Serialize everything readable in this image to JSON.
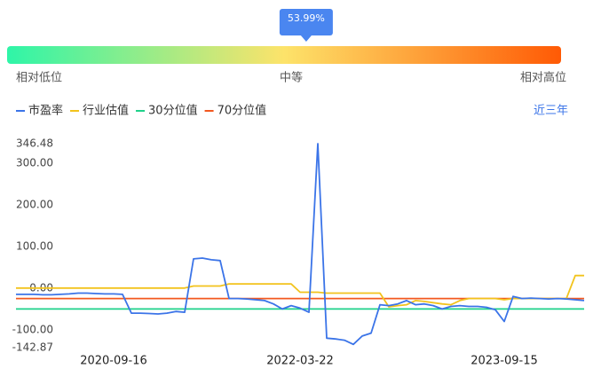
{
  "gauge": {
    "value": 53.99,
    "value_label": "53.99%",
    "labels": [
      "相对低位",
      "中等",
      "相对高位"
    ]
  },
  "range_button": "近三年",
  "chart_data": {
    "type": "line",
    "categories": [
      null,
      null,
      null,
      null,
      null,
      null,
      null,
      null,
      null,
      null,
      null,
      "2020-09-16",
      null,
      null,
      null,
      null,
      null,
      null,
      null,
      null,
      null,
      null,
      null,
      null,
      null,
      null,
      null,
      null,
      null,
      null,
      null,
      null,
      "2022-03-22",
      null,
      null,
      null,
      null,
      null,
      null,
      null,
      null,
      null,
      null,
      null,
      null,
      null,
      null,
      null,
      null,
      null,
      null,
      null,
      null,
      null,
      null,
      "2023-09-15",
      null,
      null,
      null,
      null,
      null,
      null,
      null,
      null,
      null
    ],
    "series": [
      {
        "name": "市盈率",
        "color": "#3b74e8",
        "values": [
          -15,
          -15,
          -15,
          -16,
          -16,
          -15,
          -14,
          -12,
          -12,
          -13,
          -14,
          -14,
          -15,
          -60,
          -60,
          -61,
          -62,
          -60,
          -56,
          -58,
          70,
          72,
          68,
          66,
          -25,
          -25,
          -26,
          -28,
          -30,
          -38,
          -50,
          -42,
          -48,
          -58,
          346.48,
          -120,
          -122,
          -125,
          -135,
          -115,
          -108,
          -40,
          -42,
          -38,
          -30,
          -40,
          -38,
          -42,
          -50,
          -44,
          -42,
          -44,
          -44,
          -46,
          -52,
          -80,
          -20,
          -25,
          -24,
          -25,
          -26,
          -25,
          -26,
          -28,
          -30
        ]
      },
      {
        "name": "行业估值",
        "color": "#f2c31c",
        "values": [
          0,
          0,
          0,
          0,
          0,
          0,
          0,
          0,
          0,
          0,
          0,
          0,
          0,
          0,
          0,
          0,
          0,
          0,
          0,
          0,
          5,
          5,
          5,
          5,
          10,
          10,
          10,
          10,
          10,
          10,
          10,
          10,
          -10,
          -10,
          -10,
          -12,
          -12,
          -12,
          -12,
          -12,
          -12,
          -12,
          -45,
          -42,
          -40,
          -30,
          -32,
          -35,
          -38,
          -40,
          -30,
          -25,
          -25,
          -25,
          -25,
          -28,
          -25,
          -25,
          -25,
          -25,
          -25,
          -25,
          -25,
          30,
          30
        ]
      },
      {
        "name": "30分位值",
        "color": "#1fd18a",
        "values": [
          -50,
          -50,
          -50,
          -50,
          -50,
          -50,
          -50,
          -50,
          -50,
          -50,
          -50,
          -50,
          -50,
          -50,
          -50,
          -50,
          -50,
          -50,
          -50,
          -50,
          -50,
          -50,
          -50,
          -50,
          -50,
          -50,
          -50,
          -50,
          -50,
          -50,
          -50,
          -50,
          -50,
          -50,
          -50,
          -50,
          -50,
          -50,
          -50,
          -50,
          -50,
          -50,
          -50,
          -50,
          -50,
          -50,
          -50,
          -50,
          -50,
          -50,
          -50,
          -50,
          -50,
          -50,
          -50,
          -50,
          -50,
          -50,
          -50,
          -50,
          -50,
          -50,
          -50,
          -50,
          -50
        ]
      },
      {
        "name": "70分位值",
        "color": "#f2581f",
        "values": [
          -25,
          -25,
          -25,
          -25,
          -25,
          -25,
          -25,
          -25,
          -25,
          -25,
          -25,
          -25,
          -25,
          -25,
          -25,
          -25,
          -25,
          -25,
          -25,
          -25,
          -25,
          -25,
          -25,
          -25,
          -25,
          -25,
          -25,
          -25,
          -25,
          -25,
          -25,
          -25,
          -25,
          -25,
          -25,
          -25,
          -25,
          -25,
          -25,
          -25,
          -25,
          -25,
          -25,
          -25,
          -25,
          -25,
          -25,
          -25,
          -25,
          -25,
          -25,
          -25,
          -25,
          -25,
          -25,
          -25,
          -25,
          -25,
          -25,
          -25,
          -25,
          -25,
          -25,
          -25,
          -25
        ]
      }
    ],
    "ylim": [
      -142.87,
      346.48
    ],
    "yticks": [
      {
        "value": 346.48,
        "label": "346.48"
      },
      {
        "value": 300,
        "label": "300.00"
      },
      {
        "value": 200,
        "label": "200.00"
      },
      {
        "value": 100,
        "label": "100.00"
      },
      {
        "value": 0,
        "label": "0.00"
      },
      {
        "value": -100,
        "label": "-100.00"
      },
      {
        "value": -142.87,
        "label": "-142.87"
      }
    ],
    "grid": false
  }
}
